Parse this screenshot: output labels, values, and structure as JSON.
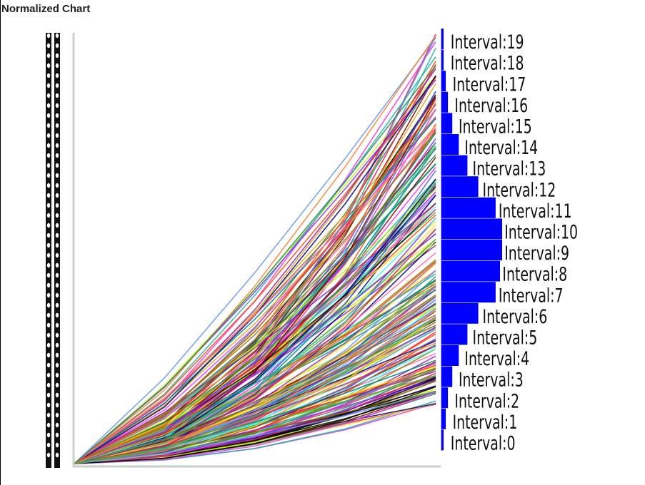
{
  "title": "Normalized Chart",
  "chart_data": [
    {
      "type": "line",
      "description_source": "left panel: ~200 normalized series rising from origin",
      "x": [
        0,
        1,
        2,
        3,
        4
      ],
      "series_count": 200,
      "y_end_range": [
        0.07,
        1.0
      ],
      "ylim": [
        0,
        1
      ],
      "grid": false,
      "legend": "none",
      "y_axis_labels_illegible": true
    },
    {
      "type": "bar",
      "orientation": "horizontal",
      "categories": [
        "Interval:0",
        "Interval:1",
        "Interval:2",
        "Interval:3",
        "Interval:4",
        "Interval:5",
        "Interval:6",
        "Interval:7",
        "Interval:8",
        "Interval:9",
        "Interval:10",
        "Interval:11",
        "Interval:12",
        "Interval:13",
        "Interval:14",
        "Interval:15",
        "Interval:16",
        "Interval:17",
        "Interval:18",
        "Interval:19"
      ],
      "values": [
        1,
        2,
        3,
        5,
        8,
        12,
        17,
        25,
        27,
        28,
        28,
        25,
        17,
        12,
        8,
        5,
        3,
        2,
        1,
        1
      ],
      "bar_color": "#0000ff"
    }
  ],
  "colors": {
    "bar": "#0000ff",
    "axis": "#c8d0c8",
    "palette": [
      "#e6194b",
      "#3cb44b",
      "#ffe119",
      "#4363d8",
      "#f58231",
      "#911eb4",
      "#46f0f0",
      "#f032e6",
      "#bcf60c",
      "#008080",
      "#9a6324",
      "#800000",
      "#808000",
      "#000075",
      "#000000",
      "#6495ed",
      "#ff69b4",
      "#20b2aa",
      "#ff4500",
      "#8a2be2",
      "#2e8b57",
      "#daa520"
    ]
  }
}
